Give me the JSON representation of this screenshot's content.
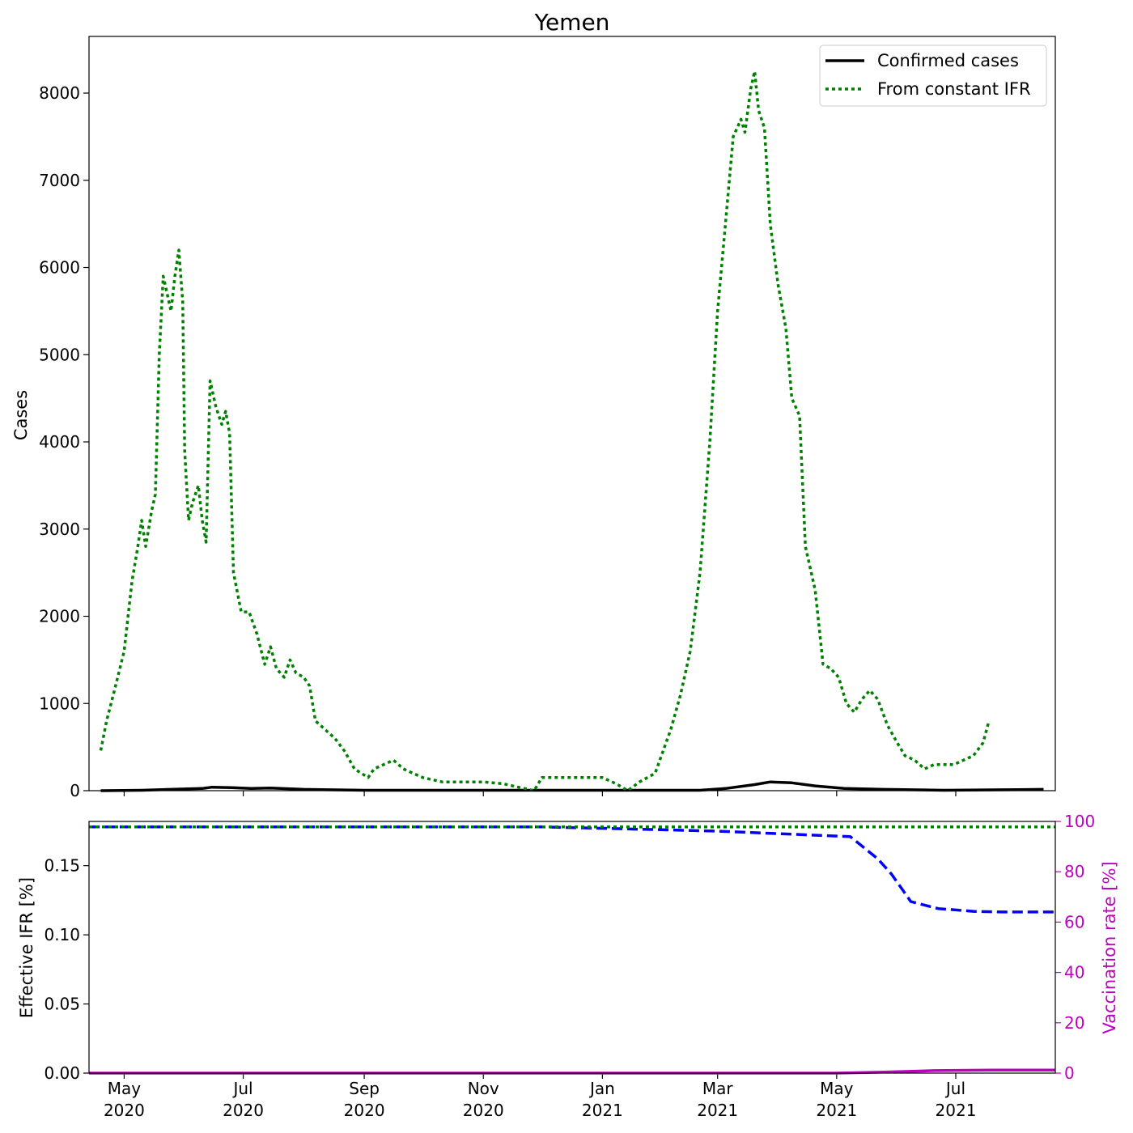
{
  "chart_data": [
    {
      "type": "line",
      "title": "Yemen",
      "xlabel": "",
      "ylabel": "Cases",
      "ylim": [
        0,
        8650
      ],
      "xlim": [
        "2020-04-13",
        "2021-08-21"
      ],
      "yticks": [
        "0",
        "1000",
        "2000",
        "3000",
        "4000",
        "5000",
        "6000",
        "7000",
        "8000"
      ],
      "xticks": [
        {
          "date": "2020-05-01",
          "label": "May\n2020"
        },
        {
          "date": "2020-07-01",
          "label": "Jul\n2020"
        },
        {
          "date": "2020-09-01",
          "label": "Sep\n2020"
        },
        {
          "date": "2020-11-01",
          "label": "Nov\n2020"
        },
        {
          "date": "2021-01-01",
          "label": "Jan\n2021"
        },
        {
          "date": "2021-03-01",
          "label": "Mar\n2021"
        },
        {
          "date": "2021-05-01",
          "label": "May\n2021"
        },
        {
          "date": "2021-07-01",
          "label": "Jul\n2021"
        }
      ],
      "legend_position": "top-right",
      "grid": false,
      "series": [
        {
          "name": "Confirmed cases",
          "color": "#000000",
          "style": "solid",
          "points": [
            [
              "2020-04-19",
              0
            ],
            [
              "2020-05-10",
              5
            ],
            [
              "2020-05-25",
              15
            ],
            [
              "2020-06-10",
              25
            ],
            [
              "2020-06-15",
              40
            ],
            [
              "2020-06-25",
              35
            ],
            [
              "2020-07-05",
              25
            ],
            [
              "2020-07-15",
              30
            ],
            [
              "2020-08-01",
              15
            ],
            [
              "2020-09-01",
              5
            ],
            [
              "2021-02-20",
              5
            ],
            [
              "2021-03-05",
              25
            ],
            [
              "2021-03-20",
              70
            ],
            [
              "2021-03-28",
              100
            ],
            [
              "2021-04-08",
              90
            ],
            [
              "2021-04-20",
              55
            ],
            [
              "2021-05-05",
              25
            ],
            [
              "2021-05-25",
              15
            ],
            [
              "2021-06-25",
              5
            ],
            [
              "2021-08-15",
              15
            ]
          ]
        },
        {
          "name": "From constant IFR",
          "color": "#008000",
          "style": "dotted",
          "points": [
            [
              "2020-04-19",
              460
            ],
            [
              "2020-04-22",
              800
            ],
            [
              "2020-04-26",
              1150
            ],
            [
              "2020-05-01",
              1600
            ],
            [
              "2020-05-05",
              2400
            ],
            [
              "2020-05-08",
              2800
            ],
            [
              "2020-05-10",
              3100
            ],
            [
              "2020-05-12",
              2800
            ],
            [
              "2020-05-15",
              3200
            ],
            [
              "2020-05-17",
              3400
            ],
            [
              "2020-05-19",
              5000
            ],
            [
              "2020-05-21",
              5900
            ],
            [
              "2020-05-23",
              5700
            ],
            [
              "2020-05-25",
              5500
            ],
            [
              "2020-05-27",
              5900
            ],
            [
              "2020-05-29",
              6200
            ],
            [
              "2020-05-31",
              5600
            ],
            [
              "2020-06-01",
              3900
            ],
            [
              "2020-06-03",
              3100
            ],
            [
              "2020-06-05",
              3300
            ],
            [
              "2020-06-08",
              3500
            ],
            [
              "2020-06-10",
              3100
            ],
            [
              "2020-06-12",
              2850
            ],
            [
              "2020-06-14",
              4700
            ],
            [
              "2020-06-17",
              4400
            ],
            [
              "2020-06-20",
              4200
            ],
            [
              "2020-06-22",
              4350
            ],
            [
              "2020-06-24",
              4100
            ],
            [
              "2020-06-26",
              2500
            ],
            [
              "2020-06-30",
              2050
            ],
            [
              "2020-07-04",
              2050
            ],
            [
              "2020-07-08",
              1800
            ],
            [
              "2020-07-12",
              1450
            ],
            [
              "2020-07-15",
              1650
            ],
            [
              "2020-07-18",
              1400
            ],
            [
              "2020-07-22",
              1300
            ],
            [
              "2020-07-25",
              1500
            ],
            [
              "2020-07-28",
              1350
            ],
            [
              "2020-08-01",
              1300
            ],
            [
              "2020-08-04",
              1200
            ],
            [
              "2020-08-07",
              800
            ],
            [
              "2020-08-12",
              700
            ],
            [
              "2020-08-17",
              600
            ],
            [
              "2020-08-22",
              450
            ],
            [
              "2020-08-27",
              250
            ],
            [
              "2020-09-03",
              150
            ],
            [
              "2020-09-06",
              250
            ],
            [
              "2020-09-11",
              300
            ],
            [
              "2020-09-16",
              350
            ],
            [
              "2020-09-21",
              250
            ],
            [
              "2020-09-26",
              200
            ],
            [
              "2020-10-01",
              150
            ],
            [
              "2020-10-11",
              100
            ],
            [
              "2020-10-21",
              100
            ],
            [
              "2020-11-01",
              100
            ],
            [
              "2020-11-11",
              80
            ],
            [
              "2020-11-21",
              30
            ],
            [
              "2020-11-27",
              0
            ],
            [
              "2020-12-01",
              150
            ],
            [
              "2020-12-11",
              150
            ],
            [
              "2020-12-21",
              150
            ],
            [
              "2021-01-01",
              150
            ],
            [
              "2021-01-08",
              80
            ],
            [
              "2021-01-14",
              0
            ],
            [
              "2021-01-20",
              100
            ],
            [
              "2021-01-28",
              200
            ],
            [
              "2021-02-05",
              700
            ],
            [
              "2021-02-10",
              1100
            ],
            [
              "2021-02-15",
              1600
            ],
            [
              "2021-02-20",
              2500
            ],
            [
              "2021-02-25",
              4000
            ],
            [
              "2021-03-01",
              5500
            ],
            [
              "2021-03-05",
              6500
            ],
            [
              "2021-03-09",
              7500
            ],
            [
              "2021-03-13",
              7700
            ],
            [
              "2021-03-15",
              7550
            ],
            [
              "2021-03-18",
              8050
            ],
            [
              "2021-03-20",
              8250
            ],
            [
              "2021-03-22",
              7800
            ],
            [
              "2021-03-25",
              7600
            ],
            [
              "2021-03-28",
              6500
            ],
            [
              "2021-04-01",
              5800
            ],
            [
              "2021-04-05",
              5300
            ],
            [
              "2021-04-08",
              4500
            ],
            [
              "2021-04-12",
              4300
            ],
            [
              "2021-04-15",
              2800
            ],
            [
              "2021-04-20",
              2300
            ],
            [
              "2021-04-24",
              1450
            ],
            [
              "2021-04-28",
              1400
            ],
            [
              "2021-05-02",
              1300
            ],
            [
              "2021-05-06",
              1000
            ],
            [
              "2021-05-10",
              900
            ],
            [
              "2021-05-14",
              1050
            ],
            [
              "2021-05-18",
              1150
            ],
            [
              "2021-05-22",
              1050
            ],
            [
              "2021-05-27",
              750
            ],
            [
              "2021-06-01",
              550
            ],
            [
              "2021-06-05",
              400
            ],
            [
              "2021-06-10",
              350
            ],
            [
              "2021-06-15",
              250
            ],
            [
              "2021-06-20",
              300
            ],
            [
              "2021-06-25",
              300
            ],
            [
              "2021-06-30",
              300
            ],
            [
              "2021-07-05",
              350
            ],
            [
              "2021-07-10",
              400
            ],
            [
              "2021-07-15",
              550
            ],
            [
              "2021-07-18",
              800
            ]
          ]
        }
      ]
    },
    {
      "type": "line",
      "title": "",
      "ylabel": "Effective IFR [%]",
      "ylim": [
        0,
        0.182
      ],
      "yticks": [
        "0.00",
        "0.05",
        "0.10",
        "0.15"
      ],
      "y2label": "Vaccination rate [%]",
      "y2lim": [
        0,
        100
      ],
      "y2ticks": [
        "0",
        "20",
        "40",
        "60",
        "80",
        "100"
      ],
      "y2color": "#c000c0",
      "series": [
        {
          "color": "#0000ff",
          "style": "dashed",
          "axis": "left",
          "points": [
            [
              "2020-04-13",
              0.178
            ],
            [
              "2020-12-01",
              0.178
            ],
            [
              "2021-01-01",
              0.177
            ],
            [
              "2021-03-01",
              0.175
            ],
            [
              "2021-05-08",
              0.171
            ],
            [
              "2021-05-22",
              0.155
            ],
            [
              "2021-05-29",
              0.144
            ],
            [
              "2021-06-08",
              0.124
            ],
            [
              "2021-06-22",
              0.119
            ],
            [
              "2021-07-10",
              0.117
            ],
            [
              "2021-07-25",
              0.1165
            ],
            [
              "2021-08-21",
              0.1165
            ]
          ]
        },
        {
          "color": "#008000",
          "style": "dotted",
          "axis": "left",
          "points": [
            [
              "2020-04-13",
              0.178
            ],
            [
              "2021-08-21",
              0.178
            ]
          ]
        },
        {
          "color": "#c000c0",
          "style": "solid",
          "axis": "right",
          "points": [
            [
              "2020-04-13",
              0
            ],
            [
              "2021-05-01",
              0
            ],
            [
              "2021-05-25",
              0.4
            ],
            [
              "2021-06-20",
              1.0
            ],
            [
              "2021-07-20",
              1.2
            ],
            [
              "2021-08-21",
              1.2
            ]
          ]
        }
      ]
    }
  ]
}
